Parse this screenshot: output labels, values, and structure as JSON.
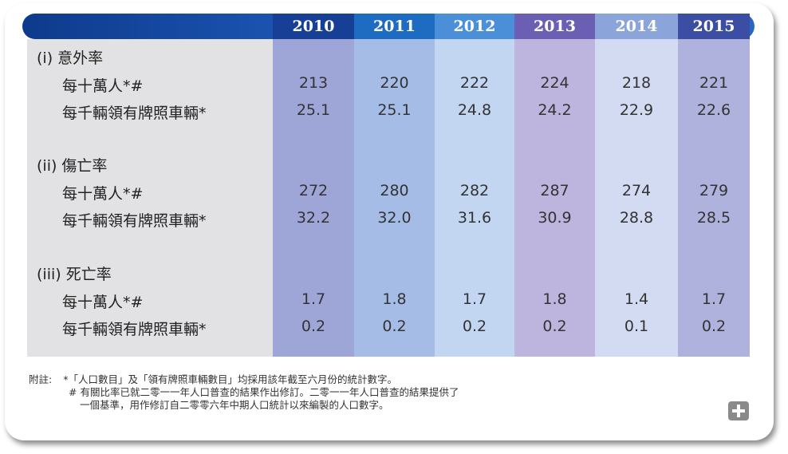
{
  "years": [
    {
      "label": "2010",
      "head_color": "#163f95",
      "body_color": "#9ea6d8"
    },
    {
      "label": "2011",
      "head_color": "#1d6cc2",
      "body_color": "#a4bce6"
    },
    {
      "label": "2012",
      "head_color": "#4a8fd8",
      "body_color": "#c2d6f2"
    },
    {
      "label": "2013",
      "head_color": "#6a5fb3",
      "body_color": "#bdb5de"
    },
    {
      "label": "2014",
      "head_color": "#8ba4da",
      "body_color": "#d2dbf2"
    },
    {
      "label": "2015",
      "head_color": "#3c4da4",
      "body_color": "#aeb2dc"
    }
  ],
  "sections": [
    {
      "title": "(i)  意外率",
      "rows": [
        {
          "label": "每十萬人*#",
          "values": [
            "213",
            "220",
            "222",
            "224",
            "218",
            "221"
          ]
        },
        {
          "label": "每千輛領有牌照車輛*",
          "values": [
            "25.1",
            "25.1",
            "24.8",
            "24.2",
            "22.9",
            "22.6"
          ]
        }
      ]
    },
    {
      "title": "(ii)  傷亡率",
      "rows": [
        {
          "label": "每十萬人*#",
          "values": [
            "272",
            "280",
            "282",
            "287",
            "274",
            "279"
          ]
        },
        {
          "label": "每千輛領有牌照車輛*",
          "values": [
            "32.2",
            "32.0",
            "31.6",
            "30.9",
            "28.8",
            "28.5"
          ]
        }
      ]
    },
    {
      "title": "(iii)  死亡率",
      "rows": [
        {
          "label": "每十萬人*#",
          "values": [
            "1.7",
            "1.8",
            "1.7",
            "1.8",
            "1.4",
            "1.7"
          ]
        },
        {
          "label": "每千輛領有牌照車輛*",
          "values": [
            "0.2",
            "0.2",
            "0.2",
            "0.2",
            "0.1",
            "0.2"
          ]
        }
      ]
    }
  ],
  "notes": {
    "prefix": "附註:",
    "line1": "*「人口數目」及「領有牌照車輛數目」均採用該年截至六月份的統計數字。",
    "line2": "# 有關比率已就二零一一年人口普查的結果作出修訂。二零一一年人口普查的結果提供了",
    "line3": "一個基準，用作修訂自二零零六年中期人口統計以來編製的人口數字。"
  },
  "expand_icon": "plus-icon"
}
